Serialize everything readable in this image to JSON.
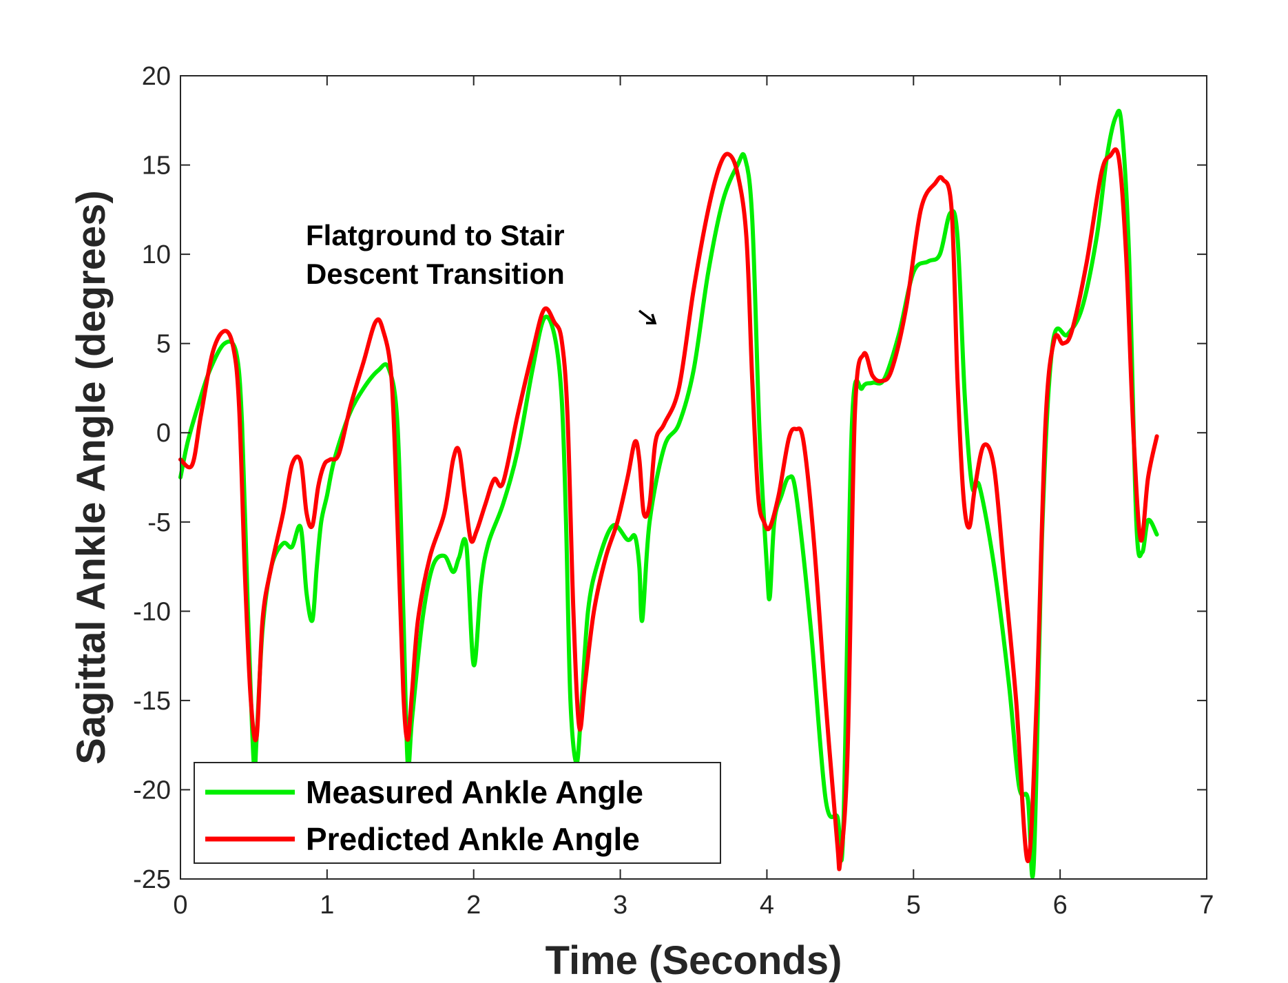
{
  "chart_data": {
    "type": "line",
    "title": "",
    "xlabel": "Time (Seconds)",
    "ylabel": "Sagittal Ankle Angle (degrees)",
    "xlim": [
      0,
      7
    ],
    "ylim": [
      -25,
      20
    ],
    "xticks": [
      0,
      1,
      2,
      3,
      4,
      5,
      6,
      7
    ],
    "yticks": [
      20,
      15,
      10,
      5,
      0,
      -5,
      -10,
      -15,
      -20,
      -25
    ],
    "grid": false,
    "legend_position": "bottom-left",
    "annotation": {
      "lines": [
        "Flatground to Stair",
        "Descent Transition"
      ],
      "arrow_points_to": {
        "x": 3.28,
        "y": 6.2
      }
    },
    "series": [
      {
        "name": "Measured Ankle Angle",
        "color": "#00ee00",
        "x": [
          0,
          0.05,
          0.12,
          0.2,
          0.3,
          0.38,
          0.42,
          0.46,
          0.5,
          0.52,
          0.56,
          0.62,
          0.7,
          0.76,
          0.82,
          0.86,
          0.9,
          0.93,
          0.96,
          1.0,
          1.05,
          1.15,
          1.25,
          1.35,
          1.42,
          1.48,
          1.52,
          1.55,
          1.58,
          1.65,
          1.72,
          1.8,
          1.86,
          1.9,
          1.95,
          2.0,
          2.05,
          2.1,
          2.2,
          2.3,
          2.4,
          2.48,
          2.55,
          2.6,
          2.63,
          2.66,
          2.7,
          2.73,
          2.78,
          2.85,
          2.95,
          3.05,
          3.1,
          3.13,
          3.15,
          3.2,
          3.3,
          3.4,
          3.5,
          3.6,
          3.7,
          3.8,
          3.85,
          3.9,
          3.95,
          4.0,
          4.02,
          4.05,
          4.1,
          4.15,
          4.2,
          4.3,
          4.4,
          4.48,
          4.52,
          4.58,
          4.65,
          4.72,
          4.8,
          4.9,
          5.0,
          5.1,
          5.18,
          5.25,
          5.3,
          5.35,
          5.4,
          5.45,
          5.55,
          5.65,
          5.72,
          5.78,
          5.82,
          5.88,
          5.95,
          6.05,
          6.15,
          6.25,
          6.32,
          6.38,
          6.42,
          6.47,
          6.52,
          6.56,
          6.6,
          6.66
        ],
        "y": [
          -2.5,
          -0.5,
          1.5,
          3.5,
          5.0,
          4.5,
          0.5,
          -10,
          -18.5,
          -17,
          -11,
          -7.5,
          -6.2,
          -6.4,
          -5.3,
          -9,
          -10.5,
          -7.5,
          -5,
          -3.5,
          -1.5,
          1,
          2.5,
          3.5,
          3.6,
          0.5,
          -10,
          -18.5,
          -16,
          -10.5,
          -7.5,
          -6.9,
          -7.8,
          -7,
          -6.3,
          -13,
          -8.5,
          -6.2,
          -4,
          -1,
          3.5,
          6.4,
          5.5,
          2,
          -5,
          -15,
          -18.5,
          -16,
          -10,
          -7.2,
          -5.2,
          -6,
          -5.8,
          -7.5,
          -10.5,
          -5,
          -0.8,
          0.5,
          3.5,
          9,
          13,
          15,
          15.4,
          12,
          0,
          -7.5,
          -9.2,
          -5,
          -3.5,
          -2.5,
          -3.5,
          -11,
          -20.5,
          -21.5,
          -22.5,
          0.5,
          2.5,
          2.8,
          3,
          5.5,
          9,
          9.6,
          10,
          12.3,
          11,
          2,
          -3,
          -3,
          -7.5,
          -14,
          -19.8,
          -20.5,
          -24.2,
          -5,
          5,
          5.5,
          7,
          11,
          15.5,
          17.7,
          17.2,
          10,
          -5,
          -6.7,
          -4.9,
          -5.7
        ]
      },
      {
        "name": "Predicted Ankle Angle",
        "color": "#ff0000",
        "x": [
          0,
          0.08,
          0.14,
          0.22,
          0.3,
          0.36,
          0.4,
          0.44,
          0.48,
          0.52,
          0.56,
          0.62,
          0.7,
          0.76,
          0.82,
          0.86,
          0.9,
          0.94,
          0.98,
          1.02,
          1.08,
          1.16,
          1.25,
          1.33,
          1.38,
          1.44,
          1.48,
          1.52,
          1.55,
          1.58,
          1.62,
          1.7,
          1.8,
          1.86,
          1.9,
          1.94,
          1.98,
          2.02,
          2.08,
          2.14,
          2.2,
          2.3,
          2.4,
          2.48,
          2.55,
          2.6,
          2.64,
          2.68,
          2.72,
          2.76,
          2.82,
          2.9,
          2.98,
          3.05,
          3.1,
          3.13,
          3.16,
          3.2,
          3.24,
          3.3,
          3.4,
          3.5,
          3.6,
          3.68,
          3.74,
          3.8,
          3.86,
          3.9,
          3.94,
          3.98,
          4.02,
          4.08,
          4.15,
          4.2,
          4.25,
          4.32,
          4.4,
          4.48,
          4.5,
          4.55,
          4.6,
          4.66,
          4.72,
          4.78,
          4.85,
          4.95,
          5.05,
          5.15,
          5.2,
          5.26,
          5.3,
          5.34,
          5.38,
          5.42,
          5.48,
          5.55,
          5.62,
          5.7,
          5.78,
          5.84,
          5.9,
          5.96,
          6.02,
          6.08,
          6.18,
          6.28,
          6.34,
          6.4,
          6.45,
          6.5,
          6.55,
          6.6,
          6.66
        ],
        "y": [
          -1.5,
          -1.8,
          1,
          4.5,
          5.7,
          4.8,
          1.5,
          -8,
          -15,
          -17,
          -10.5,
          -7.5,
          -4.5,
          -1.8,
          -1.6,
          -4.5,
          -5.2,
          -3,
          -1.8,
          -1.5,
          -1.2,
          1.5,
          4,
          6.2,
          5.8,
          3,
          -5,
          -14.5,
          -17.2,
          -14.5,
          -10.5,
          -7,
          -4.5,
          -1.5,
          -1,
          -3.5,
          -6,
          -5.5,
          -4,
          -2.6,
          -2.8,
          1,
          4.5,
          6.9,
          6.2,
          5.2,
          1,
          -10,
          -16.5,
          -14,
          -10,
          -7,
          -5,
          -2.5,
          -0.5,
          -1.5,
          -4.5,
          -4,
          -0.5,
          0.5,
          2.5,
          8,
          12.5,
          15,
          15.6,
          14.5,
          11,
          3,
          -3.5,
          -5,
          -5.3,
          -3.5,
          -0.3,
          0.2,
          -0.5,
          -6,
          -15,
          -23,
          -24,
          -18,
          1,
          4.4,
          3.2,
          2.9,
          3.5,
          7,
          12.5,
          14,
          14.2,
          12.5,
          3,
          -3.5,
          -5.3,
          -3,
          -0.7,
          -2,
          -8,
          -15,
          -24,
          -15,
          0.5,
          5.2,
          5,
          5.7,
          9.5,
          14.5,
          15.5,
          15.4,
          10,
          0,
          -6,
          -2.5,
          -0.2
        ]
      }
    ]
  }
}
